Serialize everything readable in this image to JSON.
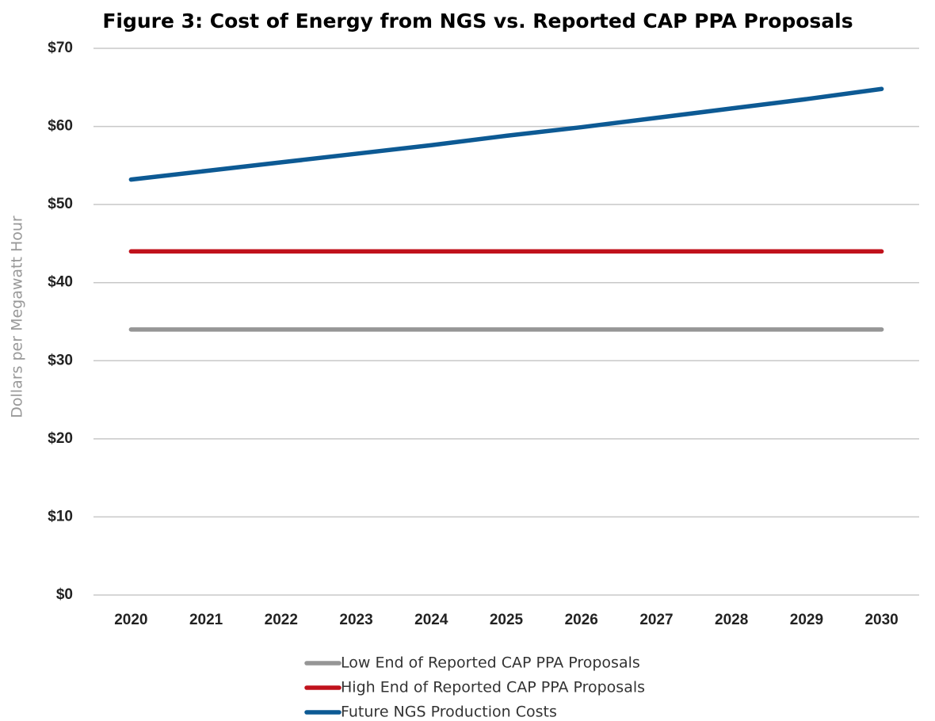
{
  "chart_data": {
    "type": "line",
    "title": "Figure 3: Cost of Energy from NGS vs. Reported CAP PPA Proposals",
    "y_label": "Dollars per Megawatt Hour",
    "categories": [
      "2020",
      "2021",
      "2022",
      "2023",
      "2024",
      "2025",
      "2026",
      "2027",
      "2028",
      "2029",
      "2030"
    ],
    "series": [
      {
        "name": "Low End of Reported CAP PPA Proposals",
        "color": "#969696",
        "values": [
          34,
          34,
          34,
          34,
          34,
          34,
          34,
          34,
          34,
          34,
          34
        ]
      },
      {
        "name": "High End of Reported CAP PPA Proposals",
        "color": "#c0121c",
        "values": [
          44,
          44,
          44,
          44,
          44,
          44,
          44,
          44,
          44,
          44,
          44
        ]
      },
      {
        "name": "Future NGS Production Costs",
        "color": "#0d5a94",
        "values": [
          53.2,
          54.3,
          55.4,
          56.5,
          57.6,
          58.8,
          59.9,
          61.1,
          62.3,
          63.5,
          64.8
        ]
      }
    ],
    "ylim": [
      0,
      70
    ],
    "yticks": [
      {
        "value": 0,
        "label": "$0"
      },
      {
        "value": 10,
        "label": "$10"
      },
      {
        "value": 20,
        "label": "$20"
      },
      {
        "value": 30,
        "label": "$30"
      },
      {
        "value": 40,
        "label": "$40"
      },
      {
        "value": 50,
        "label": "$50"
      },
      {
        "value": 60,
        "label": "$60"
      },
      {
        "value": 70,
        "label": "$70"
      }
    ],
    "grid": true,
    "legend": "bottom"
  }
}
